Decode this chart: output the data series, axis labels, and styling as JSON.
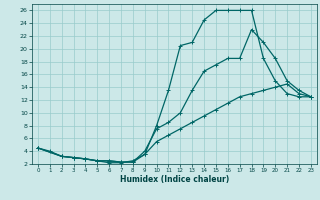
{
  "xlabel": "Humidex (Indice chaleur)",
  "bg_color": "#cce8e8",
  "grid_color": "#99cccc",
  "line_color": "#006666",
  "xlim": [
    -0.5,
    23.5
  ],
  "ylim": [
    2,
    27
  ],
  "xticks": [
    0,
    1,
    2,
    3,
    4,
    5,
    6,
    7,
    8,
    9,
    10,
    11,
    12,
    13,
    14,
    15,
    16,
    17,
    18,
    19,
    20,
    21,
    22,
    23
  ],
  "yticks": [
    2,
    4,
    6,
    8,
    10,
    12,
    14,
    16,
    18,
    20,
    22,
    24,
    26
  ],
  "curve1_x": [
    0,
    1,
    2,
    3,
    4,
    5,
    6,
    7,
    8,
    9,
    10,
    11,
    12,
    13,
    14,
    15,
    16,
    17,
    18,
    19,
    20,
    21,
    22,
    23
  ],
  "curve1_y": [
    4.5,
    4.0,
    3.2,
    3.0,
    2.8,
    2.5,
    2.2,
    2.2,
    2.5,
    3.5,
    8.0,
    13.5,
    20.5,
    21.0,
    24.5,
    26.0,
    26.0,
    26.0,
    26.0,
    18.5,
    15.0,
    13.0,
    12.5,
    12.5
  ],
  "curve2_x": [
    0,
    2,
    3,
    4,
    5,
    6,
    7,
    8,
    9,
    10,
    11,
    12,
    13,
    14,
    15,
    16,
    17,
    18,
    19,
    20,
    21,
    22,
    23
  ],
  "curve2_y": [
    4.5,
    3.2,
    3.0,
    2.8,
    2.5,
    2.5,
    2.3,
    2.3,
    4.0,
    7.5,
    8.5,
    10.0,
    13.5,
    16.5,
    17.5,
    18.5,
    18.5,
    23.0,
    21.0,
    18.5,
    15.0,
    13.5,
    12.5
  ],
  "curve3_x": [
    0,
    2,
    3,
    4,
    5,
    6,
    7,
    8,
    9,
    10,
    11,
    12,
    13,
    14,
    15,
    16,
    17,
    18,
    19,
    20,
    21,
    22,
    23
  ],
  "curve3_y": [
    4.5,
    3.2,
    3.0,
    2.8,
    2.5,
    2.5,
    2.3,
    2.3,
    3.5,
    5.5,
    6.5,
    7.5,
    8.5,
    9.5,
    10.5,
    11.5,
    12.5,
    13.0,
    13.5,
    14.0,
    14.5,
    13.0,
    12.5
  ]
}
